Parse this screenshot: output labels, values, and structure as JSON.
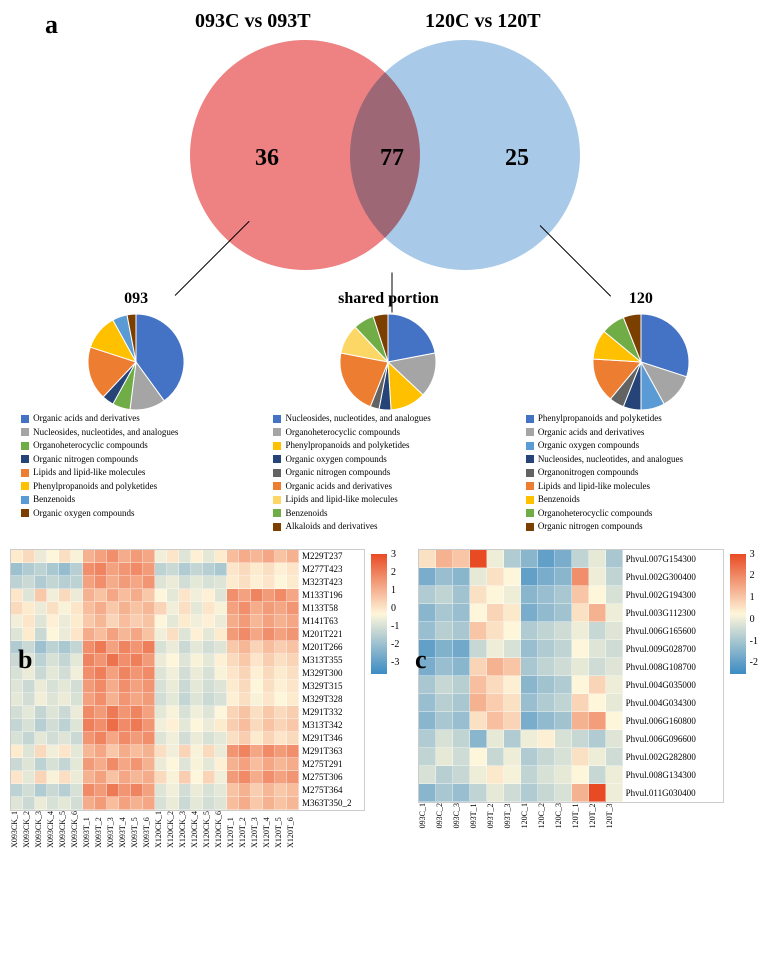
{
  "panel_labels": {
    "a": "a",
    "b": "b",
    "c": "c"
  },
  "venn": {
    "title_left": "093C vs 093T",
    "title_right": "120C vs 120T",
    "count_left": "36",
    "count_mid": "77",
    "count_right": "25",
    "color_left": "#ee8282",
    "color_right": "#a9c9e8",
    "diameter": 230
  },
  "pies": {
    "p093": {
      "title": "093",
      "slices": [
        {
          "label": "Organic acids and derivatives",
          "color": "#4472c4",
          "value": 40
        },
        {
          "label": "Nucleosides, nucleotides, and analogues",
          "color": "#a5a5a5",
          "value": 12
        },
        {
          "label": "Organoheterocyclic compounds",
          "color": "#70ad47",
          "value": 6
        },
        {
          "label": "Organic nitrogen compounds",
          "color": "#264478",
          "value": 4
        },
        {
          "label": "Lipids and lipid-like molecules",
          "color": "#ed7d31",
          "value": 18
        },
        {
          "label": "Phenylpropanoids and polyketides",
          "color": "#ffc000",
          "value": 12
        },
        {
          "label": "Benzenoids",
          "color": "#5b9bd5",
          "value": 5
        },
        {
          "label": "Organic oxygen compounds",
          "color": "#7b3f00",
          "value": 3
        }
      ]
    },
    "shared": {
      "title": "shared portion",
      "slices": [
        {
          "label": "Nucleosides, nucleotides, and analogues",
          "color": "#4472c4",
          "value": 22
        },
        {
          "label": "Organoheterocyclic compounds",
          "color": "#a5a5a5",
          "value": 15
        },
        {
          "label": "Phenylpropanoids and polyketides",
          "color": "#ffc000",
          "value": 12
        },
        {
          "label": "Organic oxygen compounds",
          "color": "#264478",
          "value": 4
        },
        {
          "label": "Organic nitrogen compounds",
          "color": "#636363",
          "value": 3
        },
        {
          "label": "Organic acids and derivatives",
          "color": "#ed7d31",
          "value": 22
        },
        {
          "label": "Lipids and lipid-like molecules",
          "color": "#fdd766",
          "value": 10
        },
        {
          "label": "Benzenoids",
          "color": "#70ad47",
          "value": 7
        },
        {
          "label": "Alkaloids and derivatives",
          "color": "#7b3f00",
          "value": 5
        }
      ]
    },
    "p120": {
      "title": "120",
      "slices": [
        {
          "label": "Phenylpropanoids and polyketides",
          "color": "#4472c4",
          "value": 30
        },
        {
          "label": "Organic acids and derivatives",
          "color": "#a5a5a5",
          "value": 12
        },
        {
          "label": "Organic oxygen compounds",
          "color": "#5b9bd5",
          "value": 8
        },
        {
          "label": "Nucleosides, nucleotides, and analogues",
          "color": "#264478",
          "value": 6
        },
        {
          "label": "Organonitrogen compounds",
          "color": "#636363",
          "value": 5
        },
        {
          "label": "Lipids and lipid-like molecules",
          "color": "#ed7d31",
          "value": 15
        },
        {
          "label": "Benzenoids",
          "color": "#ffc000",
          "value": 10
        },
        {
          "label": "Organoheterocyclic compounds",
          "color": "#70ad47",
          "value": 8
        },
        {
          "label": "Organic nitrogen compounds",
          "color": "#7b3f00",
          "value": 6
        }
      ]
    }
  },
  "heatmap_b": {
    "rows": [
      "M229T237",
      "M277T423",
      "M323T423",
      "M133T196",
      "M133T58",
      "M141T63",
      "M201T221",
      "M201T266",
      "M313T355",
      "M329T300",
      "M329T315",
      "M329T328",
      "M291T332",
      "M313T342",
      "M291T346",
      "M291T363",
      "M275T291",
      "M275T306",
      "M275T364",
      "M363T350_2"
    ],
    "cols": [
      "X093CK_1",
      "X093CK_2",
      "X093CK_3",
      "X093CK_4",
      "X093CK_5",
      "X093CK_6",
      "X093T_1",
      "X093T_2",
      "X093T_3",
      "X093T_4",
      "X093T_5",
      "X093T_6",
      "X120CK_1",
      "X120CK_2",
      "X120CK_3",
      "X120CK_4",
      "X120CK_5",
      "X120CK_6",
      "X120T_1",
      "X120T_2",
      "X120T_3",
      "X120T_4",
      "X120T_5",
      "X120T_6"
    ],
    "colorbar": {
      "min": -3,
      "max": 3,
      "ticks": [
        3,
        2,
        1,
        0,
        -1,
        -2,
        -3
      ]
    },
    "data": [
      [
        0.2,
        0.5,
        -0.3,
        0.0,
        0.4,
        -0.1,
        1.2,
        1.5,
        1.8,
        1.3,
        1.6,
        1.4,
        -0.2,
        0.3,
        -0.5,
        0.1,
        -0.4,
        0.2,
        1.0,
        1.3,
        1.1,
        1.4,
        0.9,
        1.2
      ],
      [
        -1.5,
        -1.2,
        -1.0,
        -1.3,
        -1.6,
        -1.1,
        1.8,
        2.0,
        1.5,
        1.7,
        1.9,
        1.6,
        -1.0,
        -0.8,
        -1.2,
        -0.9,
        -1.1,
        -1.3,
        0.3,
        0.5,
        0.2,
        0.4,
        0.1,
        0.3
      ],
      [
        -1.0,
        -0.8,
        -1.2,
        -0.9,
        -1.1,
        -1.0,
        1.5,
        1.8,
        1.3,
        1.6,
        1.4,
        1.7,
        -0.5,
        -0.3,
        -0.7,
        -0.4,
        -0.6,
        -0.5,
        0.2,
        0.4,
        0.1,
        0.3,
        0.0,
        0.2
      ],
      [
        0.3,
        -0.5,
        0.8,
        -0.2,
        0.5,
        -0.3,
        1.2,
        0.9,
        1.4,
        1.0,
        1.3,
        0.8,
        0.0,
        -0.4,
        0.3,
        -0.2,
        0.1,
        -0.5,
        1.8,
        1.5,
        2.0,
        1.6,
        1.9,
        1.4
      ],
      [
        0.5,
        0.2,
        -0.3,
        0.4,
        -0.1,
        0.3,
        1.0,
        1.3,
        0.8,
        1.2,
        0.9,
        1.1,
        0.6,
        -0.2,
        0.4,
        -0.4,
        0.3,
        -0.1,
        1.5,
        1.8,
        1.3,
        1.6,
        1.4,
        1.7
      ],
      [
        -0.2,
        0.3,
        -0.5,
        0.1,
        -0.3,
        0.2,
        0.8,
        1.1,
        0.6,
        1.0,
        0.7,
        0.9,
        0.0,
        -0.4,
        0.2,
        -0.2,
        0.1,
        -0.3,
        1.3,
        1.6,
        1.1,
        1.5,
        1.2,
        1.4
      ],
      [
        -0.5,
        0.2,
        -0.8,
        0.0,
        -0.3,
        0.3,
        1.3,
        1.0,
        1.5,
        1.1,
        1.4,
        0.9,
        -0.2,
        0.4,
        -0.5,
        0.1,
        -0.4,
        0.2,
        1.6,
        1.9,
        1.4,
        1.8,
        1.5,
        1.7
      ],
      [
        -1.2,
        -0.8,
        -1.5,
        -1.0,
        -1.3,
        -0.9,
        1.8,
        2.2,
        1.5,
        2.0,
        1.7,
        2.1,
        -0.6,
        -0.3,
        -0.8,
        -0.4,
        -0.7,
        -0.5,
        0.8,
        1.1,
        0.6,
        1.0,
        0.7,
        0.9
      ],
      [
        -0.8,
        -0.5,
        -1.0,
        -0.6,
        -0.9,
        -0.4,
        2.0,
        1.7,
        2.3,
        1.8,
        2.1,
        1.6,
        -0.3,
        0.0,
        -0.5,
        -0.1,
        -0.4,
        0.1,
        0.5,
        0.8,
        0.3,
        0.7,
        0.4,
        0.6
      ],
      [
        -0.6,
        -0.3,
        -0.8,
        -0.4,
        -0.7,
        -0.2,
        1.8,
        2.1,
        1.5,
        2.0,
        1.7,
        1.9,
        -0.5,
        -0.2,
        -0.7,
        -0.3,
        -0.6,
        -0.1,
        0.3,
        0.6,
        0.1,
        0.5,
        0.2,
        0.4
      ],
      [
        -0.5,
        -0.8,
        -0.3,
        -0.6,
        -0.4,
        -0.7,
        1.6,
        1.9,
        1.3,
        1.8,
        1.5,
        1.7,
        -0.6,
        -0.3,
        -0.8,
        -0.4,
        -0.7,
        -0.5,
        0.2,
        0.5,
        0.0,
        0.4,
        0.1,
        0.3
      ],
      [
        -0.4,
        -0.7,
        -0.2,
        -0.5,
        -0.3,
        -0.6,
        1.5,
        1.8,
        1.2,
        1.7,
        1.4,
        1.6,
        -0.7,
        -0.4,
        -0.9,
        -0.5,
        -0.8,
        -0.6,
        0.1,
        0.4,
        -0.1,
        0.3,
        0.0,
        0.2
      ],
      [
        -0.7,
        -0.4,
        -0.9,
        -0.5,
        -0.8,
        -0.3,
        1.9,
        1.6,
        2.2,
        1.7,
        2.0,
        1.5,
        -0.4,
        -0.1,
        -0.6,
        -0.2,
        -0.5,
        0.0,
        0.6,
        0.9,
        0.4,
        0.8,
        0.5,
        0.7
      ],
      [
        -0.9,
        -0.6,
        -1.1,
        -0.7,
        -1.0,
        -0.5,
        2.1,
        1.8,
        2.4,
        1.9,
        2.2,
        1.7,
        -0.2,
        0.1,
        -0.4,
        0.0,
        -0.3,
        0.2,
        0.7,
        1.0,
        0.5,
        0.9,
        0.6,
        0.8
      ],
      [
        -0.6,
        -0.9,
        -0.4,
        -0.7,
        -0.5,
        -0.8,
        1.7,
        2.0,
        1.4,
        1.9,
        1.6,
        1.8,
        -0.5,
        -0.2,
        -0.7,
        -0.3,
        -0.6,
        -0.4,
        0.4,
        0.7,
        0.2,
        0.6,
        0.3,
        0.5
      ],
      [
        0.2,
        -0.5,
        0.5,
        -0.2,
        0.3,
        -0.4,
        1.1,
        1.4,
        0.8,
        1.3,
        1.0,
        1.2,
        0.4,
        -0.2,
        0.6,
        -0.1,
        0.5,
        -0.3,
        1.7,
        2.0,
        1.4,
        1.9,
        1.6,
        1.8
      ],
      [
        -0.8,
        -0.5,
        -1.0,
        -0.6,
        -0.9,
        -0.4,
        1.6,
        1.3,
        1.9,
        1.4,
        1.7,
        1.2,
        -0.3,
        0.0,
        -0.5,
        -0.1,
        -0.4,
        0.1,
        1.2,
        1.5,
        1.0,
        1.4,
        1.1,
        1.3
      ],
      [
        0.3,
        -0.4,
        0.6,
        -0.1,
        0.4,
        -0.3,
        1.2,
        1.5,
        0.9,
        1.4,
        1.1,
        1.3,
        0.5,
        -0.1,
        0.7,
        0.0,
        0.6,
        -0.2,
        1.6,
        1.9,
        1.3,
        1.8,
        1.5,
        1.7
      ],
      [
        -1.0,
        -0.7,
        -1.2,
        -0.8,
        -1.1,
        -0.6,
        1.9,
        1.6,
        2.2,
        1.7,
        2.0,
        1.5,
        -0.5,
        -0.2,
        -0.7,
        -0.3,
        -0.6,
        -0.4,
        0.9,
        1.2,
        0.7,
        1.1,
        0.8,
        1.0
      ],
      [
        -0.5,
        -0.8,
        -0.3,
        -0.6,
        -0.4,
        -0.7,
        1.3,
        1.6,
        1.0,
        1.5,
        1.2,
        1.4,
        -0.6,
        -0.3,
        -0.8,
        -0.4,
        -0.7,
        -0.5,
        1.0,
        1.3,
        0.8,
        1.2,
        0.9,
        1.1
      ]
    ]
  },
  "heatmap_c": {
    "rows": [
      "Phvul.007G154300",
      "Phvul.002G300400",
      "Phvul.002G194300",
      "Phvul.003G112300",
      "Phvul.006G165600",
      "Phvul.009G028700",
      "Phvul.008G108700",
      "Phvul.004G035000",
      "Phvul.004G034300",
      "Phvul.006G160800",
      "Phvul.006G096600",
      "Phvul.002G282800",
      "Phvul.008G134300",
      "Phvul.011G030400"
    ],
    "cols": [
      "093C_1",
      "093C_2",
      "093C_3",
      "093T_1",
      "093T_2",
      "093T_3",
      "120C_1",
      "120C_2",
      "120C_3",
      "120T_1",
      "120T_2",
      "120T_3"
    ],
    "colorbar": {
      "min": -2,
      "max": 3,
      "ticks": [
        3,
        2,
        1,
        0,
        -1,
        -2
      ]
    },
    "data": [
      [
        0.8,
        1.5,
        1.2,
        3.2,
        0.3,
        -0.5,
        -1.0,
        -1.5,
        -1.2,
        -0.3,
        0.2,
        -0.6
      ],
      [
        -1.2,
        -0.8,
        -1.0,
        0.2,
        0.8,
        0.5,
        -1.5,
        -1.2,
        -1.0,
        2.0,
        0.3,
        -0.3
      ],
      [
        -0.5,
        -0.3,
        -0.7,
        0.8,
        0.5,
        0.3,
        -1.0,
        -0.8,
        -0.6,
        1.2,
        0.5,
        0.0
      ],
      [
        -1.0,
        -0.6,
        -0.8,
        0.5,
        1.0,
        0.7,
        -1.2,
        -0.9,
        -0.7,
        0.8,
        1.5,
        0.3
      ],
      [
        -0.8,
        -0.4,
        -0.6,
        1.2,
        0.8,
        0.5,
        -0.5,
        -0.3,
        -0.1,
        0.3,
        -0.2,
        0.1
      ],
      [
        -1.5,
        -1.1,
        -1.3,
        -0.2,
        0.3,
        0.0,
        -0.8,
        -0.5,
        -0.3,
        0.5,
        0.1,
        -0.1
      ],
      [
        -1.2,
        -0.8,
        -1.0,
        1.0,
        1.5,
        1.2,
        -0.6,
        -0.3,
        -0.1,
        0.2,
        -0.1,
        0.1
      ],
      [
        -0.6,
        -0.2,
        -0.4,
        1.3,
        0.9,
        0.6,
        -1.0,
        -0.7,
        -0.5,
        0.5,
        1.0,
        0.3
      ],
      [
        -0.8,
        -0.4,
        -0.6,
        1.5,
        1.1,
        0.8,
        -0.8,
        -0.5,
        -0.3,
        1.0,
        0.5,
        0.2
      ],
      [
        -1.0,
        -0.6,
        -0.8,
        0.8,
        1.3,
        1.0,
        -1.2,
        -0.9,
        -0.7,
        1.5,
        1.8,
        0.5
      ],
      [
        -0.5,
        0.0,
        -0.3,
        -1.0,
        0.2,
        -0.5,
        0.3,
        0.6,
        0.0,
        -0.2,
        -0.5,
        0.1
      ],
      [
        -0.3,
        0.2,
        -0.1,
        0.5,
        -0.2,
        0.3,
        -0.5,
        -0.2,
        0.0,
        0.8,
        0.3,
        -0.1
      ],
      [
        0.0,
        -0.4,
        -0.2,
        0.3,
        0.7,
        0.4,
        -0.3,
        0.0,
        0.2,
        0.5,
        -0.2,
        0.3
      ],
      [
        -1.0,
        -0.6,
        -0.8,
        -0.3,
        0.2,
        -0.1,
        -0.5,
        -0.2,
        0.0,
        1.5,
        3.2,
        0.3
      ]
    ]
  },
  "colorscale": {
    "low": "#3b8bc4",
    "mid": "#fef6da",
    "high": "#e84b24"
  }
}
